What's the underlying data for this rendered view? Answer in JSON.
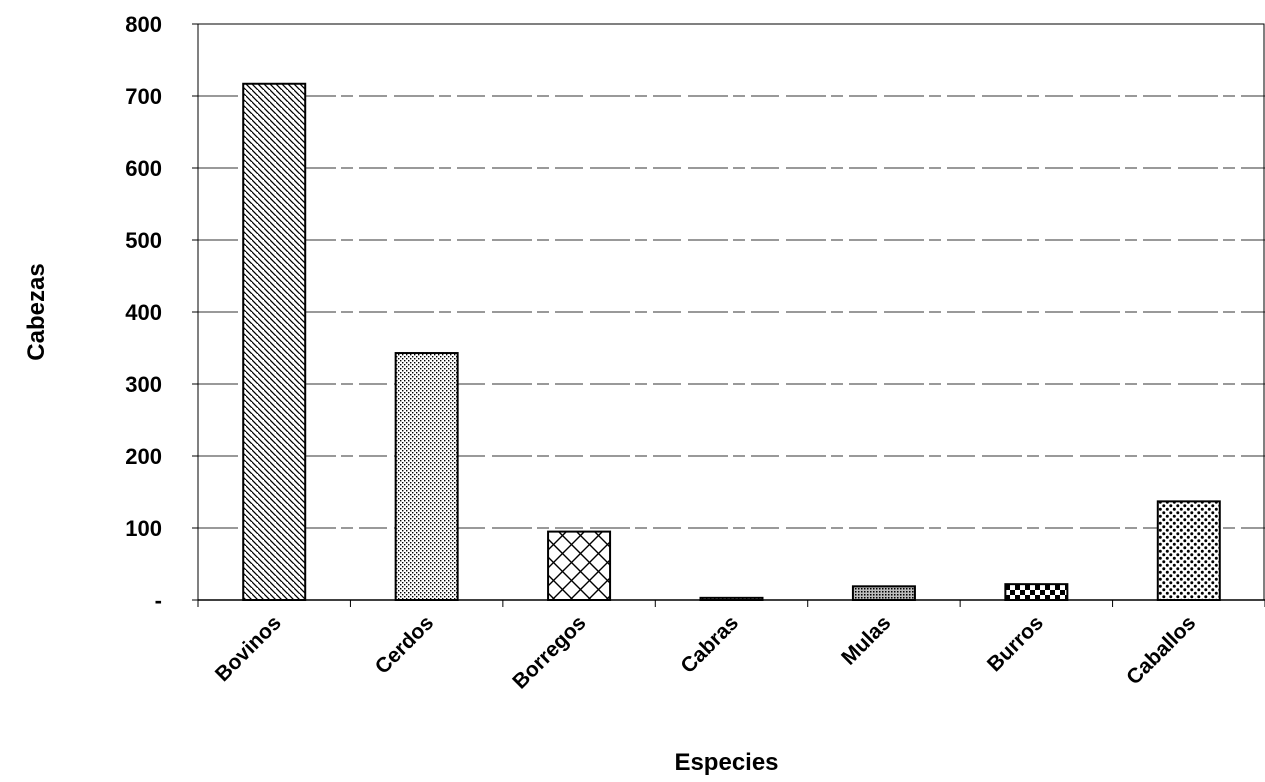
{
  "chart_data": {
    "type": "bar",
    "title": "",
    "xlabel": "Especies",
    "ylabel": "Cabezas",
    "categories": [
      "Bovinos",
      "Cerdos",
      "Borregos",
      "Cabras",
      "Mulas",
      "Burros",
      "Caballos"
    ],
    "values": [
      717,
      343,
      95,
      3,
      19,
      22,
      137
    ],
    "ylim": [
      0,
      800
    ],
    "yticks": [
      0,
      100,
      200,
      300,
      400,
      500,
      600,
      700,
      800
    ],
    "ytick_labels": [
      "-",
      "100",
      "200",
      "300",
      "400",
      "500",
      "600",
      "700",
      "800"
    ],
    "grid": true,
    "legend": "none",
    "bar_fill": "#ffffff",
    "bar_stroke": "#000000",
    "patterns": [
      "diagonal-hatch",
      "fine-dots",
      "brick",
      "fine-dots",
      "dense-dots",
      "checker",
      "coarse-dots"
    ]
  }
}
